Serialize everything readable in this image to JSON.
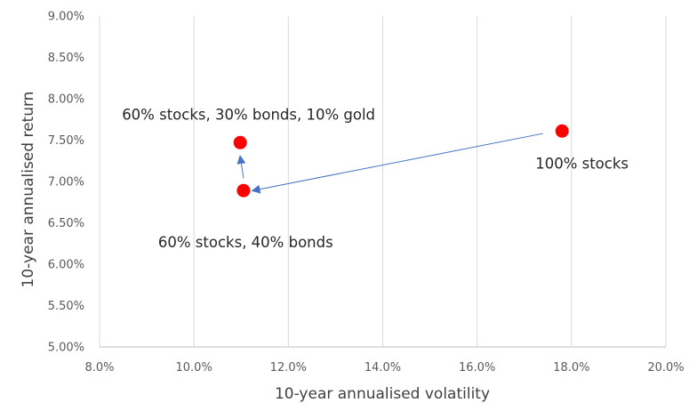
{
  "chart_data": {
    "type": "scatter",
    "xlabel": "10-year annualised volatility",
    "ylabel": "10-year annualised return",
    "xlim": [
      8,
      20
    ],
    "ylim": [
      5,
      9
    ],
    "x_ticks": [
      8,
      10,
      12,
      14,
      16,
      18,
      20
    ],
    "y_ticks": [
      5,
      5.5,
      6,
      6.5,
      7,
      7.5,
      8,
      8.5,
      9
    ],
    "x_tick_labels": [
      "8.0%",
      "10.0%",
      "12.0%",
      "14.0%",
      "16.0%",
      "18.0%",
      "20.0%"
    ],
    "y_tick_labels": [
      "5.00%",
      "5.50%",
      "6.00%",
      "6.50%",
      "7.00%",
      "7.50%",
      "8.00%",
      "8.50%",
      "9.00%"
    ],
    "grid": "vertical",
    "points": [
      {
        "label": "100% stocks",
        "x": 17.8,
        "y": 7.61
      },
      {
        "label": "60% stocks, 40% bonds",
        "x": 11.05,
        "y": 6.89
      },
      {
        "label": "60% stocks, 30% bonds, 10% gold",
        "x": 10.98,
        "y": 7.47
      }
    ],
    "arrows": [
      {
        "from": [
          17.4,
          7.58
        ],
        "to": [
          11.25,
          6.89
        ]
      },
      {
        "from": [
          11.05,
          7.04
        ],
        "to": [
          10.98,
          7.3
        ]
      }
    ],
    "marker_color": "#ff0000",
    "arrow_color": "#4472c4"
  }
}
